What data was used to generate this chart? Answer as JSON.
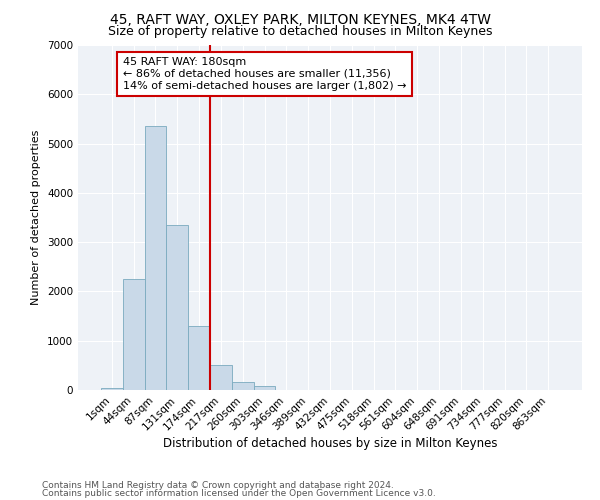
{
  "title1": "45, RAFT WAY, OXLEY PARK, MILTON KEYNES, MK4 4TW",
  "title2": "Size of property relative to detached houses in Milton Keynes",
  "xlabel": "Distribution of detached houses by size in Milton Keynes",
  "ylabel": "Number of detached properties",
  "categories": [
    "1sqm",
    "44sqm",
    "87sqm",
    "131sqm",
    "174sqm",
    "217sqm",
    "260sqm",
    "303sqm",
    "346sqm",
    "389sqm",
    "432sqm",
    "475sqm",
    "518sqm",
    "561sqm",
    "604sqm",
    "648sqm",
    "691sqm",
    "734sqm",
    "777sqm",
    "820sqm",
    "863sqm"
  ],
  "values": [
    50,
    2250,
    5350,
    3350,
    1300,
    500,
    170,
    80,
    0,
    0,
    0,
    0,
    0,
    0,
    0,
    0,
    0,
    0,
    0,
    0,
    0
  ],
  "bar_color": "#c9d9e8",
  "bar_edge_color": "#7aaabf",
  "vline_color": "#cc0000",
  "vline_pos": 4.5,
  "annotation_text": "45 RAFT WAY: 180sqm\n← 86% of detached houses are smaller (11,356)\n14% of semi-detached houses are larger (1,802) →",
  "annotation_box_color": "#ffffff",
  "annotation_box_edge": "#cc0000",
  "ylim": [
    0,
    7000
  ],
  "yticks": [
    0,
    1000,
    2000,
    3000,
    4000,
    5000,
    6000,
    7000
  ],
  "footer1": "Contains HM Land Registry data © Crown copyright and database right 2024.",
  "footer2": "Contains public sector information licensed under the Open Government Licence v3.0.",
  "bg_color": "#eef2f7",
  "title1_fontsize": 10,
  "title2_fontsize": 9,
  "xlabel_fontsize": 8.5,
  "ylabel_fontsize": 8,
  "tick_fontsize": 7.5,
  "annotation_fontsize": 8,
  "footer_fontsize": 6.5
}
